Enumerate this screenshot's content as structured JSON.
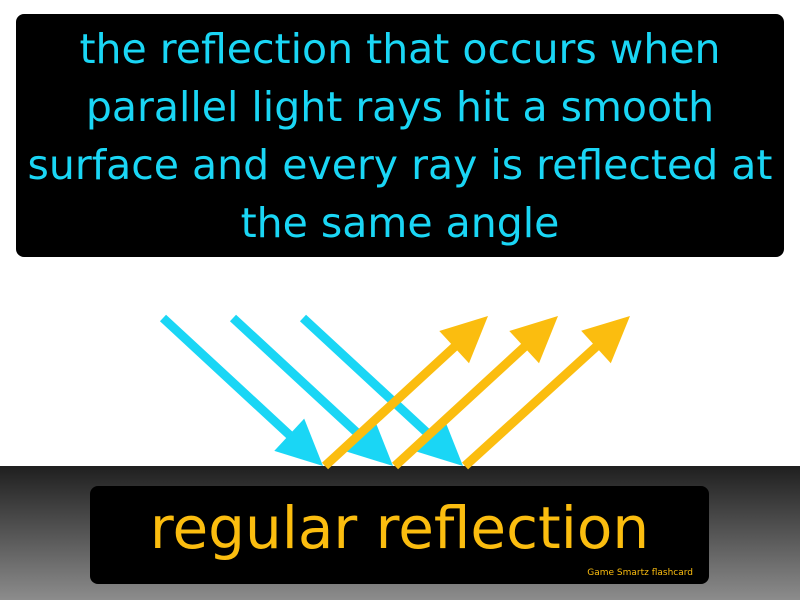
{
  "definition": {
    "text": "the reflection that occurs when parallel light rays hit a smooth surface and every ray is reflected at the same angle"
  },
  "term": {
    "text": "regular reflection"
  },
  "brand": {
    "text": "Game Smartz  flashcard"
  },
  "colors": {
    "incident_ray": "#1ad6f5",
    "reflected_ray": "#fbbd0f",
    "definition_text": "#1ad6f5",
    "term_text": "#fbbd0f",
    "panel_background": "#000000"
  },
  "icons": {
    "incident": "arrow-icon",
    "reflected": "arrow-icon"
  }
}
